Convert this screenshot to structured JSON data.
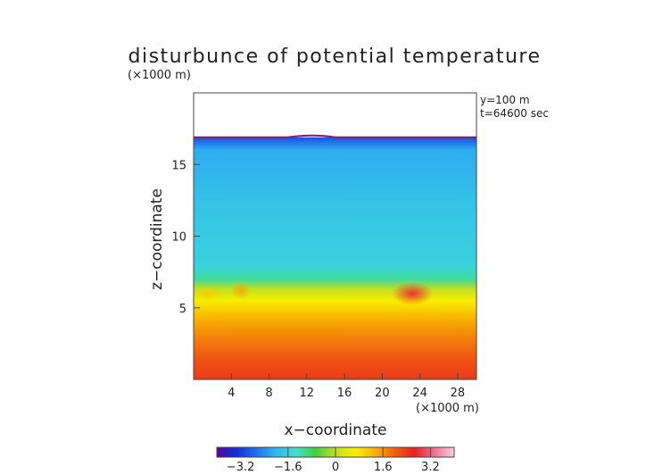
{
  "chart_data": {
    "type": "heatmap",
    "title": "disturbunce of potential temperature",
    "y_unit": "(×1000 m)",
    "x_unit": "(×1000 m)",
    "xlabel": "x−coordinate",
    "ylabel": "z−coordinate",
    "annotations": [
      "y=100 m",
      "t=64600 sec"
    ],
    "xlim": [
      0,
      30
    ],
    "ylim": [
      0,
      20
    ],
    "x_ticks": [
      {
        "value": 4,
        "label": "4"
      },
      {
        "value": 8,
        "label": "8"
      },
      {
        "value": 12,
        "label": "12"
      },
      {
        "value": 16,
        "label": "16"
      },
      {
        "value": 20,
        "label": "20"
      },
      {
        "value": 24,
        "label": "24"
      },
      {
        "value": 28,
        "label": "28"
      }
    ],
    "y_ticks": [
      {
        "value": 5,
        "label": "5"
      },
      {
        "value": 10,
        "label": "10"
      },
      {
        "value": 15,
        "label": "15"
      }
    ],
    "field_top_z": 16.9,
    "colorbar": {
      "range": [
        -4,
        4
      ],
      "ticks": [
        {
          "value": -3.2,
          "label": "−3.2"
        },
        {
          "value": -1.6,
          "label": "−1.6"
        },
        {
          "value": 0,
          "label": "0"
        },
        {
          "value": 1.6,
          "label": "1.6"
        },
        {
          "value": 3.2,
          "label": "3.2"
        }
      ],
      "colors": [
        "#5a00a0",
        "#1030d8",
        "#2070f0",
        "#30b8f0",
        "#40e0d0",
        "#40d040",
        "#c0e020",
        "#f8f000",
        "#f8b000",
        "#f06010",
        "#e82020",
        "#f07090",
        "#f8d0e0"
      ]
    },
    "profile": [
      {
        "z": 0.0,
        "value": 2.4
      },
      {
        "z": 1.5,
        "value": 2.1
      },
      {
        "z": 3.0,
        "value": 1.7
      },
      {
        "z": 4.5,
        "value": 1.2
      },
      {
        "z": 5.5,
        "value": 0.7
      },
      {
        "z": 6.3,
        "value": 0.0
      },
      {
        "z": 7.0,
        "value": -1.1
      },
      {
        "z": 8.0,
        "value": -1.6
      },
      {
        "z": 12.0,
        "value": -1.8
      },
      {
        "z": 16.0,
        "value": -2.1
      },
      {
        "z": 16.9,
        "value": -3.0
      }
    ],
    "anomalies": [
      {
        "x": 23.2,
        "z": 6.0,
        "rx": 2.2,
        "rz": 0.8,
        "value": 2.8
      },
      {
        "x": 5.0,
        "z": 6.2,
        "rx": 1.0,
        "rz": 0.6,
        "value": 1.4
      },
      {
        "x": 1.5,
        "z": 6.0,
        "rx": 1.5,
        "rz": 0.5,
        "value": 1.0
      }
    ]
  }
}
